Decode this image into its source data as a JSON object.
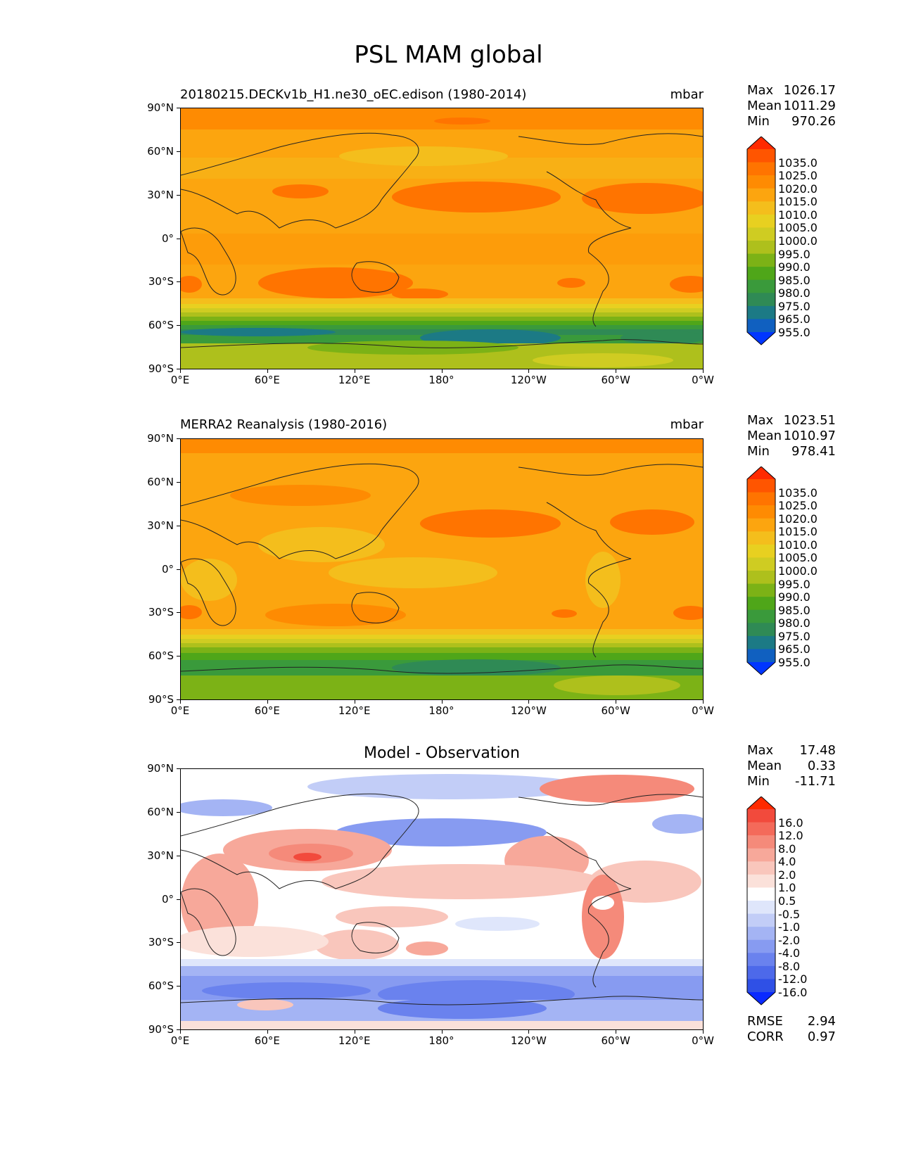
{
  "figure": {
    "title": "PSL MAM global"
  },
  "axes": {
    "lat_ticks": [
      "90°N",
      "60°N",
      "30°N",
      "0°",
      "30°S",
      "60°S",
      "90°S"
    ],
    "lon_ticks": [
      "0°E",
      "60°E",
      "120°E",
      "180°",
      "120°W",
      "60°W",
      "0°W"
    ]
  },
  "panels": [
    {
      "title": "20180215.DECKv1b_H1.ne30_oEC.edison (1980-2014)",
      "units": "mbar",
      "stats": {
        "max_label": "Max",
        "max": "1026.17",
        "mean_label": "Mean",
        "mean": "1011.29",
        "min_label": "Min",
        "min": "970.26"
      },
      "colorbar": {
        "levels": [
          "1035.0",
          "1025.0",
          "1020.0",
          "1015.0",
          "1010.0",
          "1005.0",
          "1000.0",
          "995.0",
          "990.0",
          "985.0",
          "980.0",
          "975.0",
          "965.0",
          "955.0"
        ],
        "colors": [
          "#ff2a00",
          "#ff5500",
          "#ff7400",
          "#fe8b02",
          "#fca50f",
          "#f4be1c",
          "#e8d020",
          "#cfcc22",
          "#aec01c",
          "#7cb216",
          "#4fa619",
          "#3a9a3b",
          "#2f8a55",
          "#1c7a85",
          "#1060c0",
          "#0036ff"
        ]
      }
    },
    {
      "title": "MERRA2 Reanalysis (1980-2016)",
      "units": "mbar",
      "stats": {
        "max_label": "Max",
        "max": "1023.51",
        "mean_label": "Mean",
        "mean": "1010.97",
        "min_label": "Min",
        "min": "978.41"
      },
      "colorbar": {
        "levels": [
          "1035.0",
          "1025.0",
          "1020.0",
          "1015.0",
          "1010.0",
          "1005.0",
          "1000.0",
          "995.0",
          "990.0",
          "985.0",
          "980.0",
          "975.0",
          "965.0",
          "955.0"
        ],
        "colors": [
          "#ff2a00",
          "#ff5500",
          "#ff7400",
          "#fe8b02",
          "#fca50f",
          "#f4be1c",
          "#e8d020",
          "#cfcc22",
          "#aec01c",
          "#7cb216",
          "#4fa619",
          "#3a9a3b",
          "#2f8a55",
          "#1c7a85",
          "#1060c0",
          "#0036ff"
        ]
      }
    },
    {
      "title": "Model - Observation",
      "units": "",
      "stats": {
        "max_label": "Max",
        "max": "17.48",
        "mean_label": "Mean",
        "mean": "0.33",
        "min_label": "Min",
        "min": "-11.71"
      },
      "metrics": {
        "rmse_label": "RMSE",
        "rmse": "2.94",
        "corr_label": "CORR",
        "corr": "0.97"
      },
      "colorbar": {
        "levels": [
          "16.0",
          "12.0",
          "8.0",
          "4.0",
          "2.0",
          "1.0",
          "0.5",
          "-0.5",
          "-1.0",
          "-2.0",
          "-4.0",
          "-8.0",
          "-12.0",
          "-16.0"
        ],
        "colors": [
          "#ff2a00",
          "#f24a3c",
          "#f46a5a",
          "#f58a7a",
          "#f7a89a",
          "#f9c6bc",
          "#fbe1da",
          "#ffffff",
          "#dfe6fb",
          "#c2cdf7",
          "#a4b4f4",
          "#879bf1",
          "#6a82ee",
          "#4d69ea",
          "#2f50e6",
          "#0a2aff"
        ]
      }
    }
  ],
  "colors": {
    "model_ocean": "#fca50f",
    "diff_land_pos": "#f58a7a",
    "diff_neg": "#879bf1"
  }
}
